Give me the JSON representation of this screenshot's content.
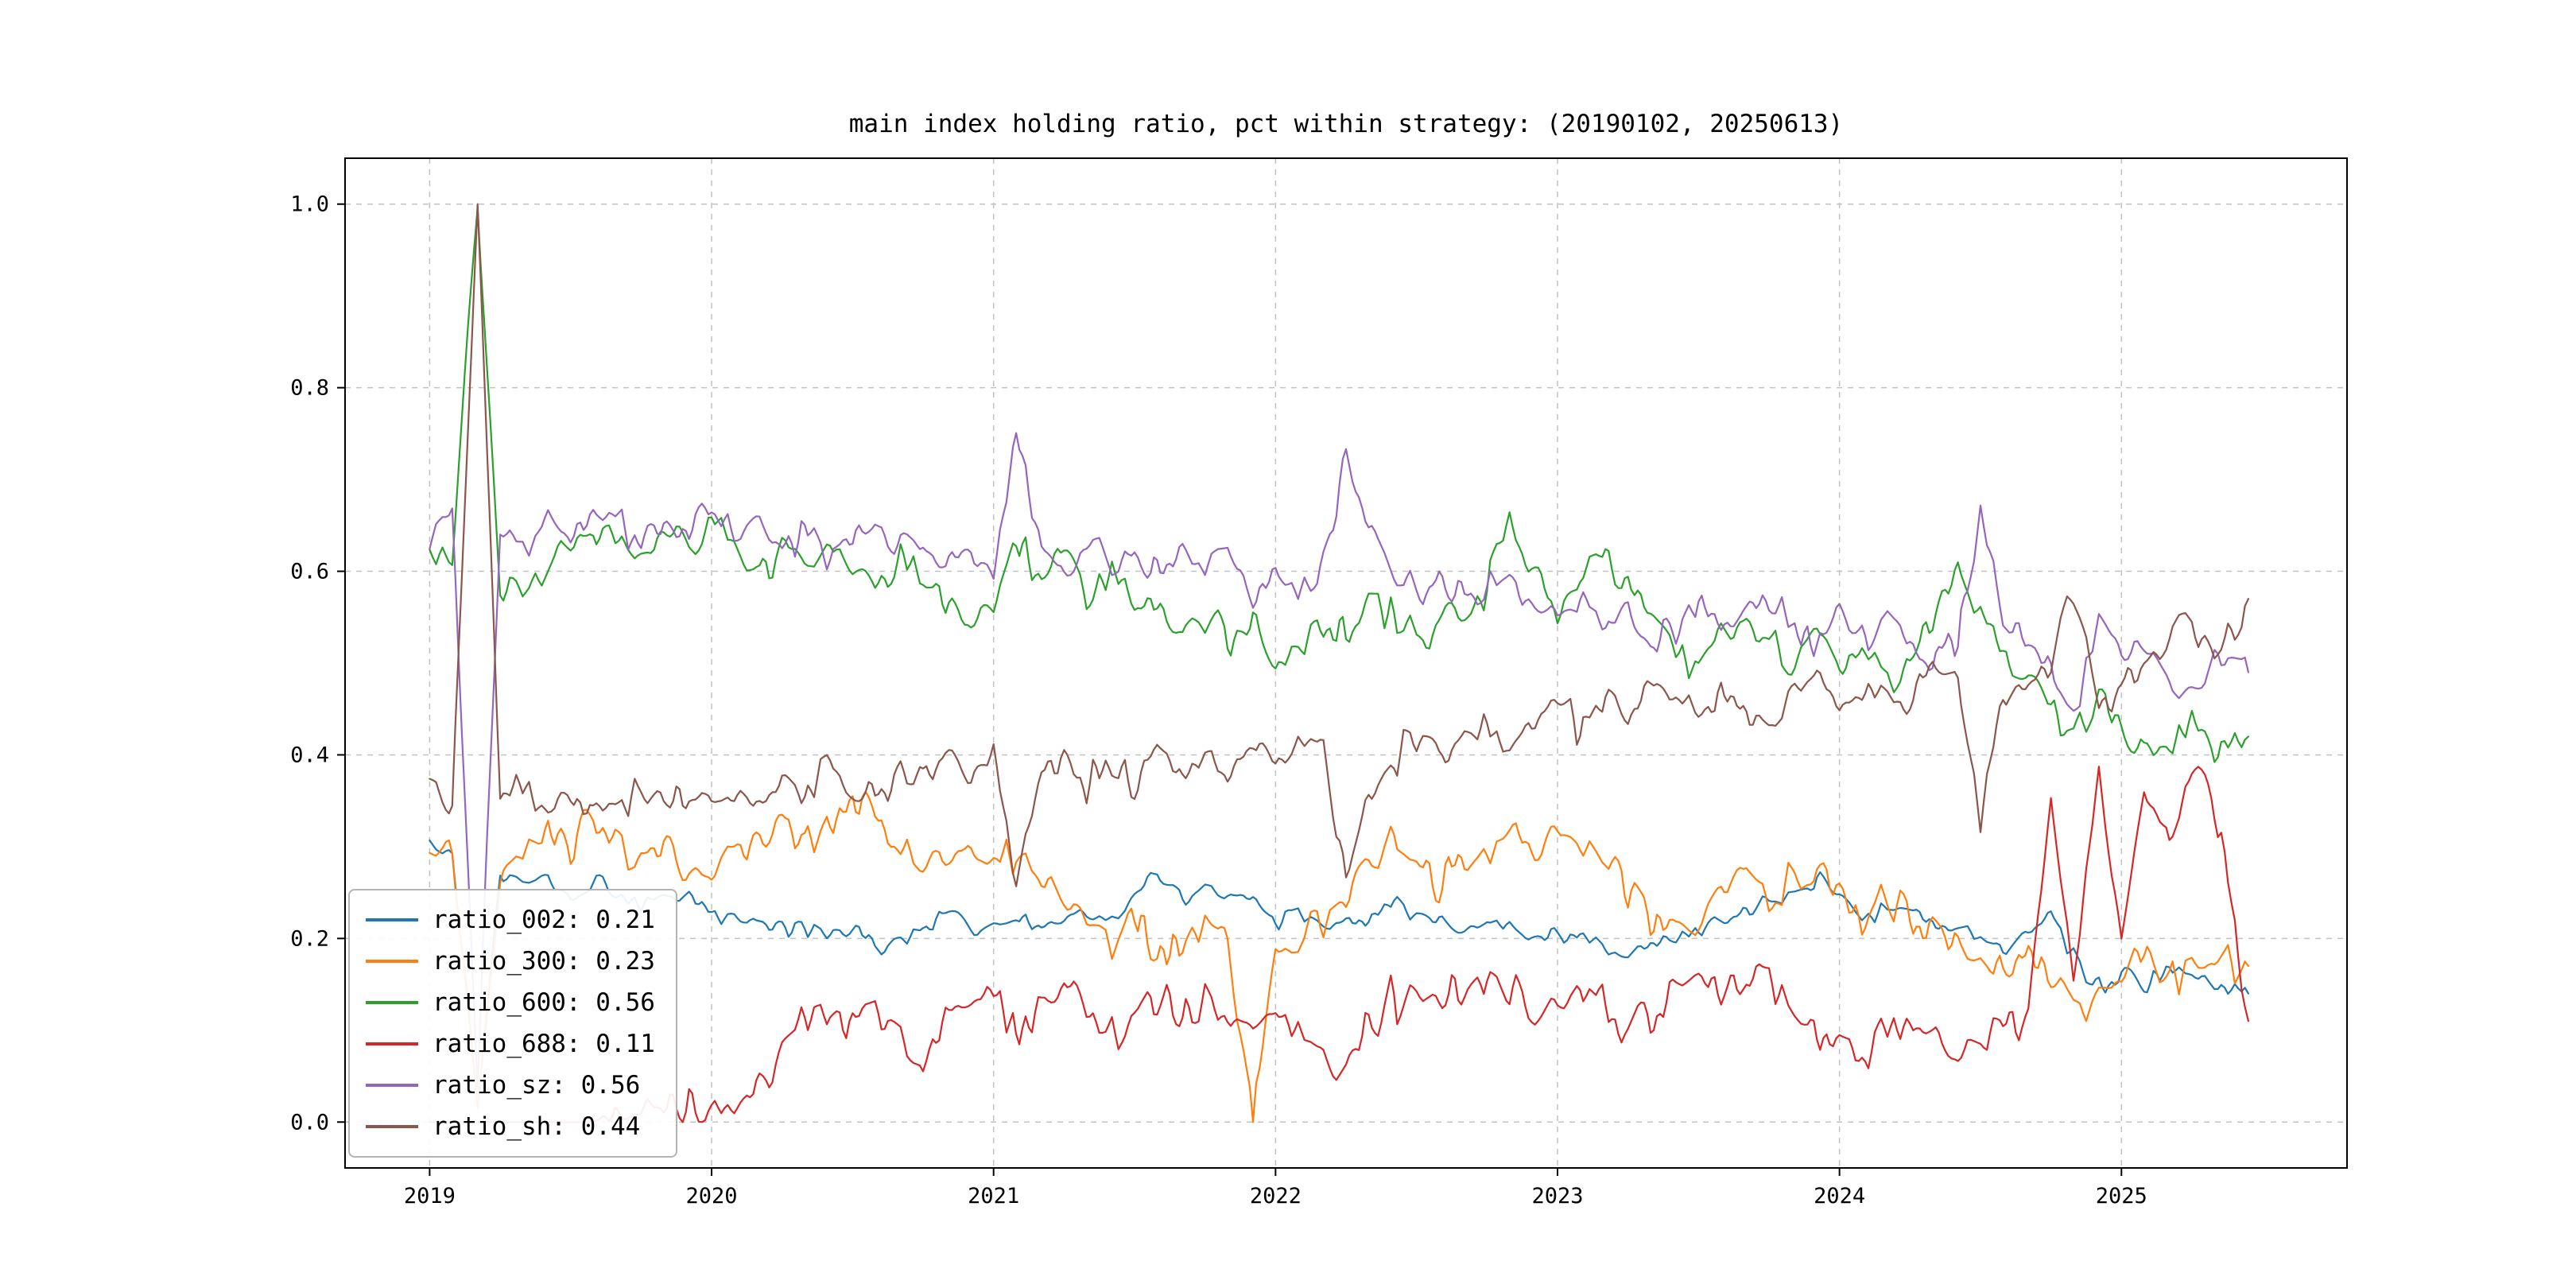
{
  "figure": {
    "background": "#ffffff",
    "grid_color": "#c2c2c2",
    "spine_color": "#000000",
    "tick_label_color": "#000000"
  },
  "chart_data": {
    "type": "line",
    "title": "main index holding ratio, pct within strategy: (20190102, 20250613)",
    "xlabel": "",
    "ylabel": "",
    "xlim": [
      2018.7,
      2025.8
    ],
    "ylim": [
      -0.05,
      1.05
    ],
    "xticks": [
      2019,
      2020,
      2021,
      2022,
      2023,
      2024,
      2025
    ],
    "yticks": [
      0.0,
      0.2,
      0.4,
      0.6,
      0.8,
      1.0
    ],
    "grid": "dashed",
    "legend_position": "lower-left",
    "x": [
      2019.0,
      2019.08,
      2019.17,
      2019.25,
      2019.33,
      2019.42,
      2019.5,
      2019.58,
      2019.67,
      2019.75,
      2019.83,
      2019.92,
      2020.0,
      2020.08,
      2020.17,
      2020.25,
      2020.33,
      2020.42,
      2020.5,
      2020.58,
      2020.67,
      2020.75,
      2020.83,
      2020.92,
      2021.0,
      2021.08,
      2021.17,
      2021.25,
      2021.33,
      2021.42,
      2021.5,
      2021.58,
      2021.67,
      2021.75,
      2021.83,
      2021.92,
      2022.0,
      2022.08,
      2022.17,
      2022.25,
      2022.33,
      2022.42,
      2022.5,
      2022.58,
      2022.67,
      2022.75,
      2022.83,
      2022.92,
      2023.0,
      2023.08,
      2023.17,
      2023.25,
      2023.33,
      2023.42,
      2023.5,
      2023.58,
      2023.67,
      2023.75,
      2023.83,
      2023.92,
      2024.0,
      2024.08,
      2024.17,
      2024.25,
      2024.33,
      2024.42,
      2024.5,
      2024.58,
      2024.67,
      2024.75,
      2024.83,
      2024.92,
      2025.0,
      2025.08,
      2025.17,
      2025.25,
      2025.33,
      2025.45
    ],
    "series": [
      {
        "name": "ratio_002",
        "legend_label": "ratio_002: 0.21",
        "color": "#1f77b4",
        "noise_amp": 0.015,
        "values": [
          0.3,
          0.29,
          0.02,
          0.27,
          0.26,
          0.26,
          0.25,
          0.26,
          0.25,
          0.24,
          0.25,
          0.24,
          0.23,
          0.22,
          0.22,
          0.21,
          0.21,
          0.2,
          0.21,
          0.19,
          0.2,
          0.21,
          0.22,
          0.21,
          0.21,
          0.22,
          0.21,
          0.22,
          0.23,
          0.22,
          0.25,
          0.27,
          0.24,
          0.26,
          0.25,
          0.24,
          0.22,
          0.23,
          0.22,
          0.21,
          0.22,
          0.24,
          0.23,
          0.22,
          0.21,
          0.22,
          0.21,
          0.2,
          0.2,
          0.21,
          0.19,
          0.18,
          0.19,
          0.2,
          0.21,
          0.22,
          0.23,
          0.24,
          0.25,
          0.26,
          0.25,
          0.22,
          0.24,
          0.23,
          0.22,
          0.21,
          0.2,
          0.19,
          0.21,
          0.22,
          0.18,
          0.15,
          0.16,
          0.15,
          0.17,
          0.16,
          0.15,
          0.14
        ]
      },
      {
        "name": "ratio_300",
        "legend_label": "ratio_300: 0.23",
        "color": "#ff7f0e",
        "noise_amp": 0.033,
        "values": [
          0.3,
          0.28,
          0.02,
          0.27,
          0.3,
          0.32,
          0.3,
          0.33,
          0.31,
          0.29,
          0.3,
          0.28,
          0.26,
          0.29,
          0.3,
          0.33,
          0.3,
          0.32,
          0.35,
          0.33,
          0.3,
          0.28,
          0.3,
          0.29,
          0.28,
          0.3,
          0.26,
          0.24,
          0.22,
          0.2,
          0.22,
          0.18,
          0.2,
          0.22,
          0.19,
          0.0,
          0.18,
          0.2,
          0.22,
          0.24,
          0.28,
          0.3,
          0.28,
          0.26,
          0.28,
          0.3,
          0.32,
          0.3,
          0.33,
          0.3,
          0.28,
          0.25,
          0.22,
          0.2,
          0.22,
          0.25,
          0.27,
          0.24,
          0.26,
          0.28,
          0.25,
          0.22,
          0.24,
          0.22,
          0.2,
          0.18,
          0.17,
          0.16,
          0.18,
          0.15,
          0.14,
          0.13,
          0.15,
          0.17,
          0.16,
          0.18,
          0.17,
          0.17
        ]
      },
      {
        "name": "ratio_600",
        "legend_label": "ratio_600: 0.56",
        "color": "#2ca02c",
        "noise_amp": 0.028,
        "values": [
          0.62,
          0.6,
          1.0,
          0.58,
          0.57,
          0.6,
          0.62,
          0.65,
          0.63,
          0.62,
          0.64,
          0.63,
          0.65,
          0.63,
          0.6,
          0.62,
          0.61,
          0.63,
          0.6,
          0.58,
          0.62,
          0.6,
          0.57,
          0.55,
          0.58,
          0.63,
          0.6,
          0.62,
          0.58,
          0.6,
          0.55,
          0.57,
          0.53,
          0.55,
          0.52,
          0.54,
          0.5,
          0.52,
          0.55,
          0.53,
          0.57,
          0.55,
          0.52,
          0.54,
          0.56,
          0.58,
          0.66,
          0.6,
          0.55,
          0.6,
          0.62,
          0.58,
          0.55,
          0.52,
          0.5,
          0.53,
          0.55,
          0.52,
          0.5,
          0.53,
          0.5,
          0.52,
          0.48,
          0.5,
          0.55,
          0.62,
          0.55,
          0.5,
          0.48,
          0.45,
          0.43,
          0.46,
          0.44,
          0.4,
          0.42,
          0.45,
          0.4,
          0.42
        ]
      },
      {
        "name": "ratio_688",
        "legend_label": "ratio_688: 0.11",
        "color": "#d62728",
        "noise_amp": 0.033,
        "values": [
          0.0,
          0.0,
          0.0,
          0.0,
          0.0,
          0.0,
          0.0,
          0.0,
          0.01,
          0.01,
          0.02,
          0.02,
          0.02,
          0.01,
          0.03,
          0.08,
          0.1,
          0.12,
          0.11,
          0.13,
          0.1,
          0.05,
          0.12,
          0.13,
          0.14,
          0.1,
          0.12,
          0.15,
          0.13,
          0.1,
          0.12,
          0.14,
          0.11,
          0.13,
          0.12,
          0.1,
          0.12,
          0.1,
          0.08,
          0.06,
          0.1,
          0.14,
          0.12,
          0.15,
          0.13,
          0.16,
          0.14,
          0.12,
          0.13,
          0.15,
          0.12,
          0.1,
          0.12,
          0.14,
          0.15,
          0.13,
          0.16,
          0.14,
          0.12,
          0.1,
          0.08,
          0.06,
          0.1,
          0.12,
          0.1,
          0.08,
          0.1,
          0.09,
          0.12,
          0.35,
          0.15,
          0.38,
          0.2,
          0.36,
          0.3,
          0.38,
          0.35,
          0.11
        ]
      },
      {
        "name": "ratio_sz",
        "legend_label": "ratio_sz: 0.56",
        "color": "#9467bd",
        "noise_amp": 0.028,
        "values": [
          0.63,
          0.66,
          0.05,
          0.65,
          0.63,
          0.66,
          0.64,
          0.67,
          0.65,
          0.63,
          0.65,
          0.64,
          0.66,
          0.64,
          0.65,
          0.63,
          0.64,
          0.62,
          0.63,
          0.65,
          0.62,
          0.63,
          0.6,
          0.62,
          0.6,
          0.74,
          0.62,
          0.6,
          0.63,
          0.61,
          0.63,
          0.6,
          0.62,
          0.6,
          0.63,
          0.58,
          0.6,
          0.58,
          0.6,
          0.73,
          0.65,
          0.6,
          0.58,
          0.6,
          0.57,
          0.58,
          0.6,
          0.56,
          0.55,
          0.57,
          0.54,
          0.56,
          0.52,
          0.54,
          0.56,
          0.53,
          0.55,
          0.57,
          0.54,
          0.52,
          0.54,
          0.52,
          0.55,
          0.53,
          0.5,
          0.52,
          0.68,
          0.54,
          0.52,
          0.5,
          0.44,
          0.55,
          0.52,
          0.5,
          0.48,
          0.45,
          0.5,
          0.49
        ]
      },
      {
        "name": "ratio_sh",
        "legend_label": "ratio_sh: 0.44",
        "color": "#8c564b",
        "noise_amp": 0.028,
        "values": [
          0.37,
          0.34,
          1.0,
          0.35,
          0.37,
          0.34,
          0.36,
          0.33,
          0.35,
          0.37,
          0.35,
          0.36,
          0.34,
          0.36,
          0.35,
          0.37,
          0.36,
          0.38,
          0.37,
          0.35,
          0.38,
          0.37,
          0.4,
          0.38,
          0.4,
          0.26,
          0.38,
          0.4,
          0.37,
          0.39,
          0.37,
          0.4,
          0.38,
          0.4,
          0.37,
          0.42,
          0.4,
          0.42,
          0.4,
          0.27,
          0.35,
          0.4,
          0.42,
          0.4,
          0.43,
          0.42,
          0.4,
          0.44,
          0.45,
          0.43,
          0.46,
          0.44,
          0.48,
          0.46,
          0.44,
          0.47,
          0.45,
          0.43,
          0.46,
          0.48,
          0.46,
          0.48,
          0.45,
          0.47,
          0.5,
          0.48,
          0.32,
          0.46,
          0.48,
          0.5,
          0.58,
          0.45,
          0.48,
          0.5,
          0.52,
          0.55,
          0.5,
          0.57
        ]
      }
    ]
  }
}
